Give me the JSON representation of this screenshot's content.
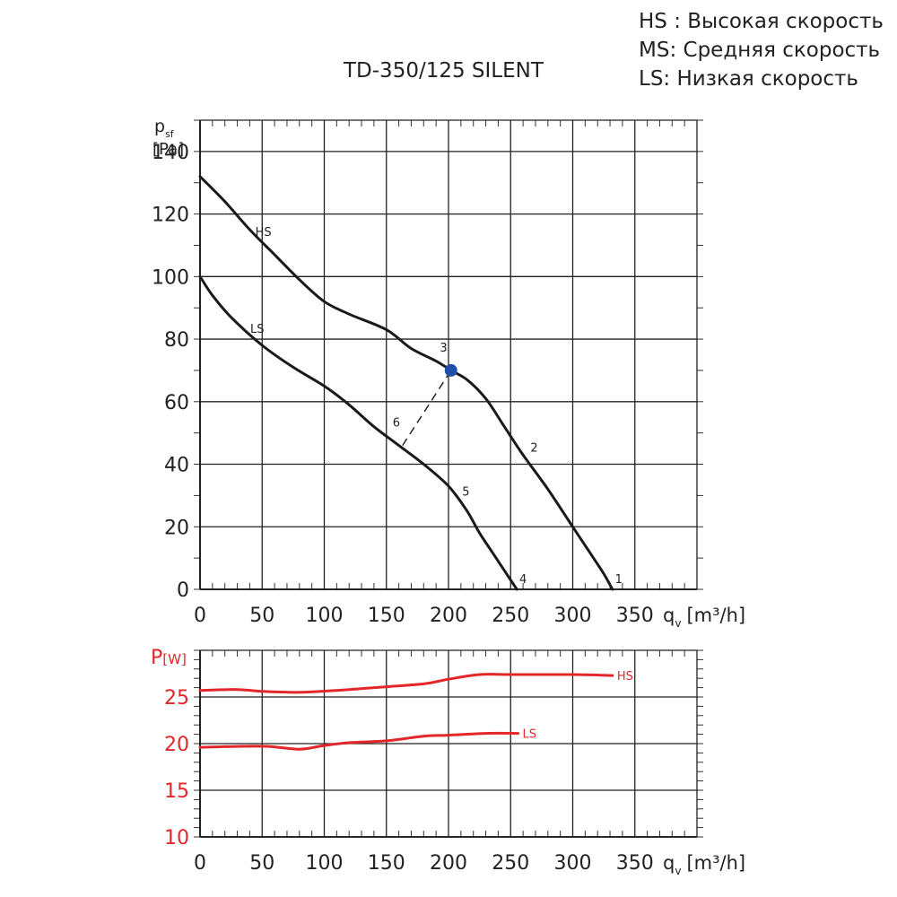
{
  "legend": [
    "HS : Высокая скорость",
    "MS: Средняя скорость",
    "LS: Низкая скорость"
  ],
  "chart_data": [
    {
      "type": "line",
      "title": "TD-350/125 SILENT",
      "ylabel_main": "p",
      "ylabel_sub": "sf",
      "ylabel_unit": "[Pa]",
      "xlabel_main": "q",
      "xlabel_sub": "v",
      "xlabel_unit": "[m³/h]",
      "xlim": [
        0,
        400
      ],
      "ylim": [
        0,
        150
      ],
      "x_ticks": [
        0,
        50,
        100,
        150,
        200,
        250,
        300,
        350
      ],
      "y_ticks": [
        0,
        20,
        40,
        60,
        80,
        100,
        120,
        140
      ],
      "grid": true,
      "series": [
        {
          "name": "HS",
          "color": "#1a1a1a",
          "x": [
            0,
            20,
            40,
            60,
            80,
            100,
            120,
            150,
            170,
            190,
            202,
            215,
            230,
            245,
            260,
            280,
            300,
            315,
            325,
            332
          ],
          "y": [
            132,
            124,
            115,
            107,
            99,
            92,
            88,
            83,
            77,
            73,
            70,
            67,
            61,
            52,
            43,
            32,
            20,
            11,
            5,
            0
          ]
        },
        {
          "name": "LS",
          "color": "#1a1a1a",
          "x": [
            0,
            10,
            25,
            50,
            75,
            100,
            120,
            140,
            160,
            180,
            200,
            215,
            225,
            235,
            245,
            255
          ],
          "y": [
            100,
            94,
            87,
            78,
            71,
            65,
            59,
            52,
            46,
            40,
            33,
            25,
            18,
            12,
            6,
            0
          ]
        }
      ],
      "dashed_line": {
        "x": [
          163,
          202
        ],
        "y": [
          46,
          70
        ]
      },
      "operating_point": {
        "x": 202,
        "y": 70,
        "color": "#1f4fa8"
      },
      "point_labels": [
        {
          "label": "1",
          "x": 337,
          "y": 2
        },
        {
          "label": "2",
          "x": 269,
          "y": 44
        },
        {
          "label": "3",
          "x": 196,
          "y": 76
        },
        {
          "label": "4",
          "x": 260,
          "y": 2
        },
        {
          "label": "5",
          "x": 214,
          "y": 30
        },
        {
          "label": "6",
          "x": 158,
          "y": 52
        }
      ],
      "curve_labels": [
        {
          "label": "HS",
          "x": 51,
          "y": 113
        },
        {
          "label": "LS",
          "x": 46,
          "y": 82
        }
      ]
    },
    {
      "type": "line",
      "ylabel_main": "P",
      "ylabel_unit": "[W]",
      "ylabel_color": "#e3262a",
      "xlabel_main": "q",
      "xlabel_sub": "v",
      "xlabel_unit": "[m³/h]",
      "xlim": [
        0,
        400
      ],
      "ylim": [
        10,
        30
      ],
      "x_ticks": [
        0,
        50,
        100,
        150,
        200,
        250,
        300,
        350
      ],
      "y_ticks": [
        10,
        15,
        20,
        25
      ],
      "grid": true,
      "series": [
        {
          "name": "HS",
          "color": "#e3262a",
          "x": [
            0,
            30,
            50,
            80,
            110,
            150,
            180,
            200,
            225,
            250,
            300,
            332
          ],
          "y": [
            25.7,
            25.8,
            25.6,
            25.5,
            25.7,
            26.1,
            26.4,
            26.9,
            27.4,
            27.4,
            27.4,
            27.3
          ]
        },
        {
          "name": "LS",
          "color": "#e3262a",
          "x": [
            0,
            30,
            55,
            80,
            100,
            120,
            150,
            180,
            200,
            230,
            256
          ],
          "y": [
            19.6,
            19.7,
            19.7,
            19.4,
            19.8,
            20.1,
            20.3,
            20.8,
            20.9,
            21.1,
            21.1
          ]
        }
      ]
    }
  ]
}
